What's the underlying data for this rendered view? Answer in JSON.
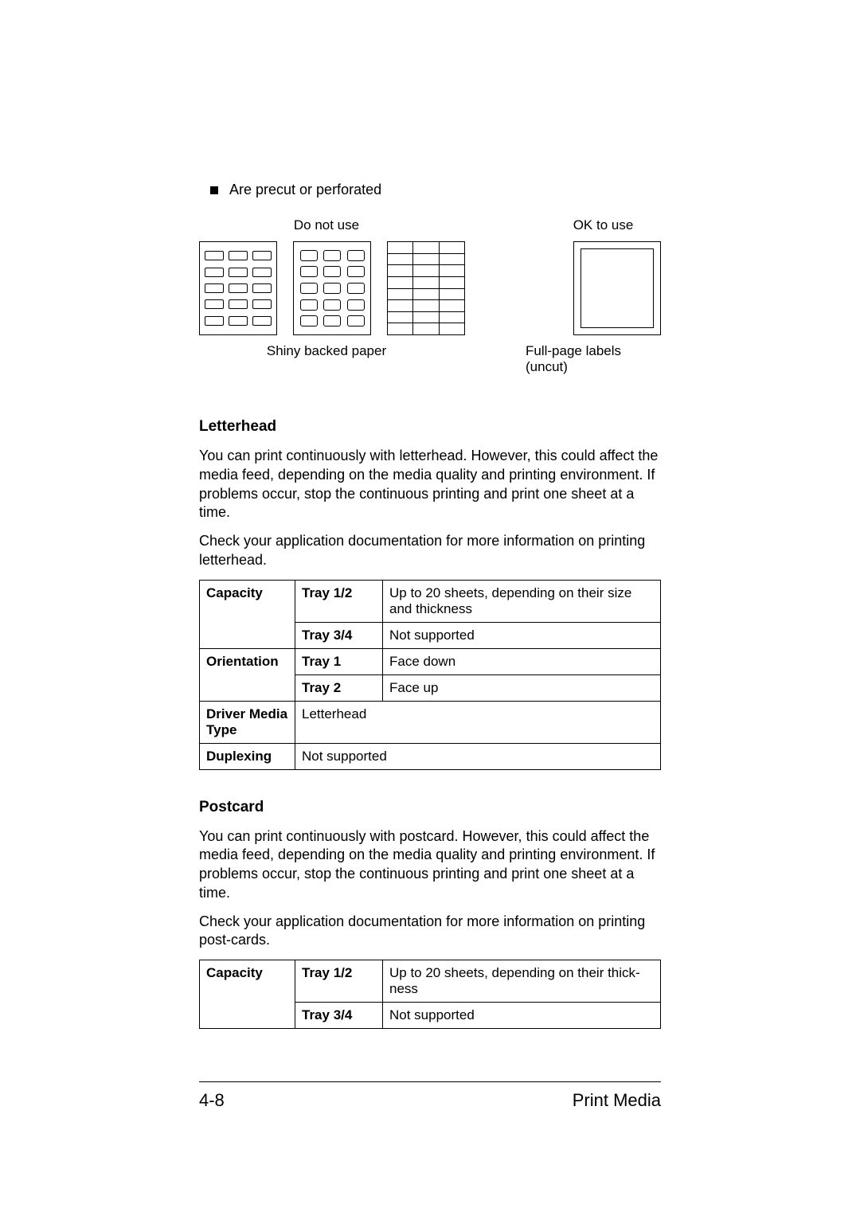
{
  "bullet": "Are precut or perforated",
  "topLabels": {
    "doNotUse": "Do not use",
    "okToUse": "OK to use"
  },
  "captions": {
    "shiny": "Shiny backed paper",
    "fullpage": "Full-page labels (uncut)"
  },
  "letterhead": {
    "heading": "Letterhead",
    "p1": "You can print continuously with letterhead. However, this could affect the media feed, depending on the media quality and printing environment. If problems occur, stop the continuous printing and print one sheet at a time.",
    "p2": "Check your application documentation for more information on printing letterhead.",
    "table": {
      "capacity": "Capacity",
      "tray12": "Tray 1/2",
      "tray12val": "Up to 20 sheets, depending on their size and thickness",
      "tray34": "Tray 3/4",
      "tray34val": "Not supported",
      "orientation": "Orientation",
      "tray1": "Tray 1",
      "tray1val": "Face down",
      "tray2": "Tray 2",
      "tray2val": "Face up",
      "driverMedia": "Driver Media Type",
      "driverVal": "Letterhead",
      "duplexing": "Duplexing",
      "duplexVal": "Not supported"
    }
  },
  "postcard": {
    "heading": "Postcard",
    "p1": "You can print continuously with postcard. However, this could affect the media feed, depending on the media quality and printing environment. If problems occur, stop the continuous printing and print one sheet at a time.",
    "p2": "Check your application documentation for more information on printing post-cards.",
    "table": {
      "capacity": "Capacity",
      "tray12": "Tray 1/2",
      "tray12val": "Up to 20 sheets, depending on their thick-ness",
      "tray34": "Tray 3/4",
      "tray34val": "Not supported"
    }
  },
  "footer": {
    "pageNum": "4-8",
    "section": "Print Media"
  }
}
